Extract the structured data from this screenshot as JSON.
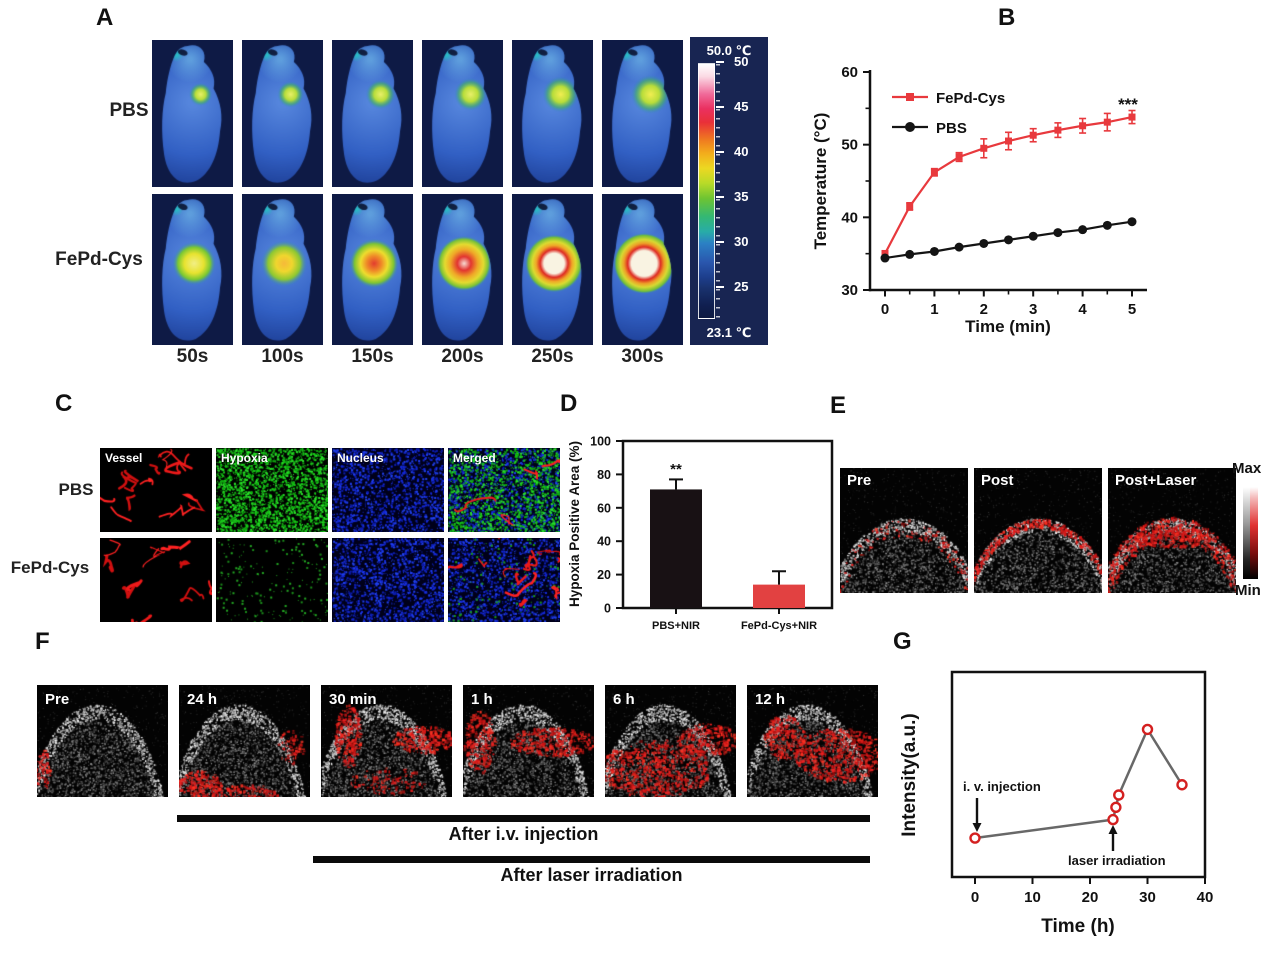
{
  "panel_a": {
    "label": "A",
    "row_labels": [
      "PBS",
      "FePd-Cys"
    ],
    "time_labels": [
      "50s",
      "100s",
      "150s",
      "200s",
      "250s",
      "300s"
    ],
    "colorbar": {
      "top_label": "50.0 ℃",
      "bottom_label": "23.1 ℃",
      "ticks": [
        "50",
        "45",
        "40",
        "35",
        "30",
        "25"
      ]
    }
  },
  "panel_b": {
    "label": "B",
    "ylabel": "Temperature (°C)",
    "xlabel": "Time (min)",
    "significance": "***",
    "legend": [
      {
        "name": "FePd-Cys",
        "color": "#e8393d",
        "marker": "square"
      },
      {
        "name": "PBS",
        "color": "#141414",
        "marker": "circle"
      }
    ],
    "chart_data": {
      "type": "line",
      "x": [
        0,
        0.5,
        1,
        1.5,
        2,
        2.5,
        3,
        3.5,
        4,
        4.5,
        5
      ],
      "series": [
        {
          "name": "FePd-Cys",
          "color": "#e8393d",
          "marker": "square",
          "values": [
            35.0,
            41.5,
            46.2,
            48.3,
            49.5,
            50.5,
            51.3,
            52.0,
            52.6,
            53.1,
            53.8
          ],
          "errors": [
            0.4,
            0.5,
            0.5,
            0.6,
            1.3,
            1.2,
            0.9,
            1.0,
            1.0,
            1.2,
            0.9
          ]
        },
        {
          "name": "PBS",
          "color": "#141414",
          "marker": "circle",
          "values": [
            34.4,
            34.9,
            35.3,
            35.9,
            36.4,
            36.9,
            37.4,
            37.9,
            38.3,
            38.9,
            39.4
          ],
          "errors": [
            0,
            0,
            0,
            0,
            0,
            0,
            0,
            0,
            0,
            0,
            0
          ]
        }
      ],
      "xlim": [
        0,
        5
      ],
      "ylim": [
        30,
        60
      ],
      "xticks": [
        0,
        1,
        2,
        3,
        4,
        5
      ],
      "yticks": [
        30,
        40,
        50,
        60
      ],
      "yminors": [
        35,
        45,
        55
      ]
    }
  },
  "panel_c": {
    "label": "C",
    "row_labels": [
      "PBS",
      "FePd-Cys"
    ],
    "column_labels": [
      "Vessel",
      "Hypoxia",
      "Nucleus",
      "Merged"
    ]
  },
  "panel_d": {
    "label": "D",
    "ylabel": "Hypoxia Positive Area (%)",
    "significance": "**",
    "chart_data": {
      "type": "bar",
      "categories": [
        "PBS+NIR",
        "FePd-Cys+NIR"
      ],
      "values": [
        71,
        14
      ],
      "errors": [
        6,
        8
      ],
      "bar_colors": [
        "#181114",
        "#e24141"
      ],
      "ylim": [
        0,
        100
      ],
      "yticks": [
        0,
        20,
        40,
        60,
        80,
        100
      ]
    }
  },
  "panel_e": {
    "label": "E",
    "image_labels": [
      "Pre",
      "Post",
      "Post+Laser"
    ],
    "colorbar": {
      "max_label": "Max",
      "min_label": "Min"
    }
  },
  "panel_f": {
    "label": "F",
    "image_labels": [
      "Pre",
      "24 h",
      "30 min",
      "1 h",
      "6 h",
      "12 h"
    ],
    "timeline_bars": [
      {
        "label": "After i.v. injection"
      },
      {
        "label": "After laser irradiation"
      }
    ]
  },
  "panel_g": {
    "label": "G",
    "ylabel": "Intensity(a.u.)",
    "xlabel": "Time (h)",
    "annotations": [
      {
        "text": "i. v. injection"
      },
      {
        "text": "laser irradiation"
      }
    ],
    "chart_data": {
      "type": "scatter-line",
      "x": [
        0,
        24,
        24.5,
        25,
        30,
        36
      ],
      "y": [
        1.9,
        2.8,
        3.4,
        4.0,
        7.2,
        4.5
      ],
      "y_unit": "a.u.",
      "xlim": [
        0,
        40
      ],
      "xticks": [
        0,
        10,
        20,
        30,
        40
      ],
      "marker": {
        "shape": "open-circle",
        "color": "#d42020"
      },
      "line_color": "#686868"
    }
  }
}
